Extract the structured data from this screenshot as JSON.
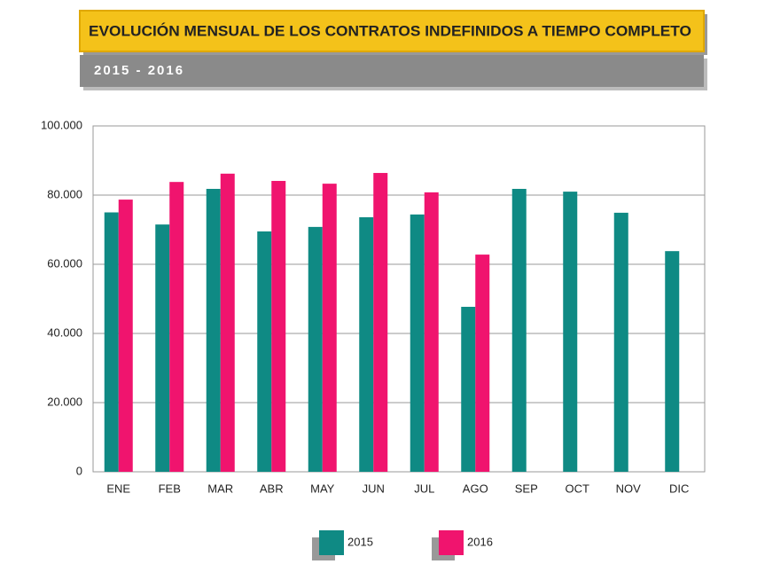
{
  "chart_data": {
    "type": "bar",
    "title": "EVOLUCIÓN MENSUAL DE LOS CONTRATOS INDEFINIDOS A TIEMPO COMPLETO",
    "subtitle": "2015 - 2016",
    "categories": [
      "ENE",
      "FEB",
      "MAR",
      "ABR",
      "MAY",
      "JUN",
      "JUL",
      "AGO",
      "SEP",
      "OCT",
      "NOV",
      "DIC"
    ],
    "series": [
      {
        "name": "2015",
        "color": "#0f8a84",
        "values": [
          75000,
          71500,
          81800,
          69500,
          70800,
          73600,
          74400,
          47700,
          81800,
          81000,
          74900,
          63800
        ]
      },
      {
        "name": "2016",
        "color": "#f0146e",
        "values": [
          78700,
          83800,
          86200,
          84100,
          83300,
          86400,
          80800,
          62800,
          null,
          null,
          null,
          null
        ]
      }
    ],
    "ylim": [
      0,
      100000
    ],
    "yticks": [
      0,
      {
        "value": 20000,
        "label": "20.000"
      },
      {
        "value": 40000,
        "label": "40.000"
      },
      {
        "value": 60000,
        "label": "60.000"
      },
      {
        "value": 80000,
        "label": "80.000"
      },
      {
        "value": 100000,
        "label": "100.000"
      }
    ],
    "grid": true
  }
}
